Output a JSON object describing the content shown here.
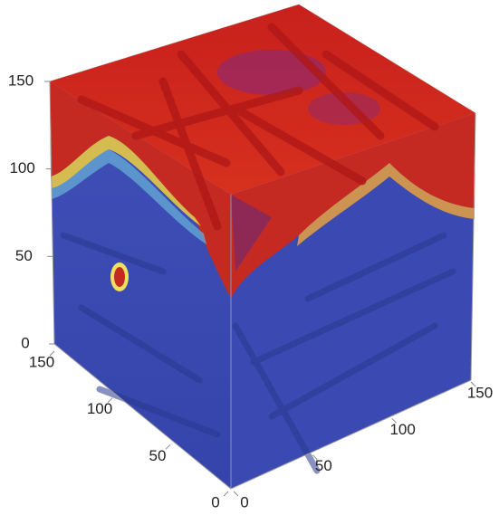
{
  "chart_data": {
    "type": "volume",
    "xlim": [
      0,
      150
    ],
    "xticks": [
      0,
      50,
      100,
      150
    ],
    "ylim": [
      0,
      150
    ],
    "yticks": [
      0,
      50,
      100,
      150
    ],
    "zlim": [
      0,
      150
    ],
    "zticks": [
      0,
      50,
      100,
      150
    ]
  }
}
